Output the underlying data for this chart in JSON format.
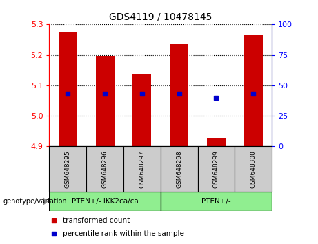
{
  "title": "GDS4119 / 10478145",
  "samples": [
    "GSM648295",
    "GSM648296",
    "GSM648297",
    "GSM648298",
    "GSM648299",
    "GSM648300"
  ],
  "bar_tops": [
    5.275,
    5.198,
    5.135,
    5.235,
    4.928,
    5.265
  ],
  "bar_bottom": 4.9,
  "blue_dot_y": [
    5.073,
    5.073,
    5.073,
    5.073,
    5.058,
    5.073
  ],
  "ylim": [
    4.9,
    5.3
  ],
  "yticks_left": [
    4.9,
    5.0,
    5.1,
    5.2,
    5.3
  ],
  "yticks_right": [
    0,
    25,
    50,
    75,
    100
  ],
  "bar_color": "#cc0000",
  "dot_color": "#0000cc",
  "group1_label": "PTEN+/- IKK2ca/ca",
  "group2_label": "PTEN+/-",
  "group1_color": "#90ee90",
  "group2_color": "#90ee90",
  "legend_label1": "transformed count",
  "legend_label2": "percentile rank within the sample",
  "bar_width": 0.5,
  "genotype_label": "genotype/variation"
}
